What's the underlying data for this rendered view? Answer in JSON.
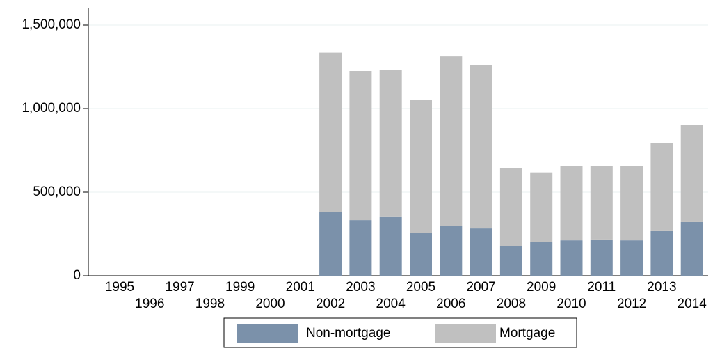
{
  "chart_data": {
    "type": "stacked_bar",
    "categories": [
      "1995",
      "1996",
      "1997",
      "1998",
      "1999",
      "2000",
      "2001",
      "2002",
      "2003",
      "2004",
      "2005",
      "2006",
      "2007",
      "2008",
      "2009",
      "2010",
      "2011",
      "2012",
      "2013",
      "2014"
    ],
    "series": [
      {
        "name": "Non-mortgage",
        "color": "#7b91aa",
        "values": [
          null,
          null,
          null,
          null,
          null,
          null,
          null,
          380000,
          333000,
          355000,
          258000,
          300000,
          283000,
          175000,
          204000,
          212000,
          217000,
          212000,
          267000,
          321000
        ]
      },
      {
        "name": "Mortgage",
        "color": "#c0c0c0",
        "values": [
          null,
          null,
          null,
          null,
          null,
          null,
          null,
          955000,
          892000,
          875000,
          792000,
          1012000,
          977000,
          467000,
          414000,
          446000,
          441000,
          443000,
          525000,
          579000
        ]
      }
    ],
    "ylim": [
      0,
      1600000
    ],
    "yticks": [
      0,
      {
        "value": 500000,
        "label": "500,000"
      },
      {
        "value": 1000000,
        "label": "1,000,000"
      },
      {
        "value": 1500000,
        "label": "1,500,000"
      }
    ],
    "grid": true
  }
}
